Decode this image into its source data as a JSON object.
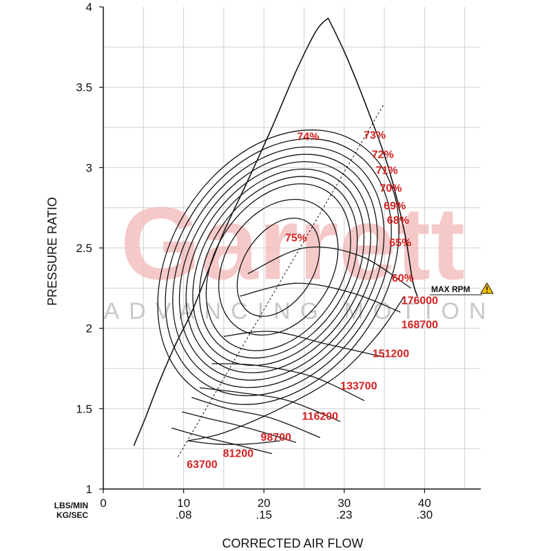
{
  "chart_data": {
    "type": "line",
    "title": "",
    "xlabel": "CORRECTED AIR FLOW",
    "ylabel": "PRESSURE RATIO",
    "x_unit_primary": "LBS/MIN",
    "x_unit_secondary": "KG/SEC",
    "xlim": [
      0,
      47
    ],
    "ylim": [
      1,
      4
    ],
    "x_ticks": [
      {
        "v": 0,
        "label": "0",
        "label2": ""
      },
      {
        "v": 10,
        "label": "10",
        "label2": ".08"
      },
      {
        "v": 20,
        "label": "20",
        "label2": ".15"
      },
      {
        "v": 30,
        "label": "30",
        "label2": ".23"
      },
      {
        "v": 40,
        "label": "40",
        "label2": ".30"
      }
    ],
    "y_ticks": [
      {
        "v": 1,
        "label": "1"
      },
      {
        "v": 1.5,
        "label": "1.5"
      },
      {
        "v": 2,
        "label": "2"
      },
      {
        "v": 2.5,
        "label": "2.5"
      },
      {
        "v": 3,
        "label": "3"
      },
      {
        "v": 3.5,
        "label": "3.5"
      },
      {
        "v": 4,
        "label": "4"
      }
    ],
    "grid": true,
    "surge_line": [
      [
        3.8,
        1.27
      ],
      [
        5.3,
        1.45
      ],
      [
        7,
        1.67
      ],
      [
        9,
        1.9
      ],
      [
        11,
        2.1
      ],
      [
        13,
        2.35
      ],
      [
        15,
        2.6
      ],
      [
        18,
        2.92
      ],
      [
        21,
        3.25
      ],
      [
        24,
        3.6
      ],
      [
        26.5,
        3.85
      ],
      [
        28,
        3.93
      ]
    ],
    "choke_line": [
      [
        28,
        3.93
      ],
      [
        30.2,
        3.7
      ],
      [
        33,
        3.35
      ],
      [
        35.5,
        3.0
      ],
      [
        37.5,
        2.6
      ],
      [
        38.5,
        2.3
      ],
      [
        39.1,
        2.2
      ]
    ],
    "top_arc": [
      [
        10.5,
        1.3
      ],
      [
        14,
        1.28
      ],
      [
        18,
        1.28
      ],
      [
        22,
        1.3
      ]
    ],
    "max_flow_line": [
      [
        10.5,
        1.3
      ],
      [
        15,
        1.35
      ],
      [
        22,
        1.5
      ],
      [
        29,
        1.7
      ],
      [
        34,
        1.95
      ],
      [
        37.5,
        2.2
      ]
    ],
    "dashed_line": [
      [
        9.3,
        1.2
      ],
      [
        35,
        3.4
      ]
    ],
    "speed_lines": [
      {
        "label": "63700",
        "points": [
          [
            8.5,
            1.38
          ],
          [
            12,
            1.33
          ],
          [
            17,
            1.27
          ],
          [
            21,
            1.22
          ]
        ],
        "label_at": [
          12.3,
          1.13
        ]
      },
      {
        "label": "81200",
        "points": [
          [
            9.8,
            1.48
          ],
          [
            13,
            1.44
          ],
          [
            18,
            1.38
          ],
          [
            24,
            1.29
          ]
        ],
        "label_at": [
          16.8,
          1.2
        ]
      },
      {
        "label": "98700",
        "points": [
          [
            11,
            1.57
          ],
          [
            15.5,
            1.5
          ],
          [
            21,
            1.44
          ],
          [
            27,
            1.32
          ]
        ],
        "label_at": [
          21.5,
          1.3
        ]
      },
      {
        "label": "116200",
        "points": [
          [
            12,
            1.63
          ],
          [
            17,
            1.6
          ],
          [
            23,
            1.55
          ],
          [
            29.5,
            1.42
          ]
        ],
        "label_at": [
          27,
          1.43
        ]
      },
      {
        "label": "133700",
        "points": [
          [
            13.5,
            1.78
          ],
          [
            19,
            1.77
          ],
          [
            26,
            1.7
          ],
          [
            32.5,
            1.55
          ]
        ],
        "label_at": [
          31.8,
          1.62
        ]
      },
      {
        "label": "151200",
        "points": [
          [
            15,
            1.95
          ],
          [
            21,
            1.98
          ],
          [
            28,
            1.9
          ],
          [
            35,
            1.82
          ]
        ],
        "label_at": [
          35.8,
          1.82
        ]
      },
      {
        "label": "168700",
        "points": [
          [
            17,
            2.2
          ],
          [
            24,
            2.28
          ],
          [
            31,
            2.22
          ],
          [
            37,
            2.1
          ]
        ],
        "label_at": [
          39.4,
          2.0
        ]
      },
      {
        "label": "176000",
        "points": [
          [
            18,
            2.34
          ],
          [
            25,
            2.5
          ],
          [
            32,
            2.45
          ],
          [
            38.3,
            2.25
          ]
        ],
        "label_at": [
          39.4,
          2.15
        ]
      }
    ],
    "efficiency_islands": [
      {
        "label": "75%",
        "rx": 6.2,
        "ry": 0.62,
        "label_at": [
          24,
          2.54
        ]
      },
      {
        "label": "74%",
        "rx": 8.4,
        "ry": 0.95,
        "label_at": [
          25.5,
          3.17
        ]
      },
      {
        "label": "73%",
        "rx": 10.4,
        "ry": 1.13,
        "label_at": [
          33.8,
          3.18
        ]
      },
      {
        "label": "72%",
        "rx": 11.3,
        "ry": 1.24,
        "label_at": [
          34.8,
          3.06
        ]
      },
      {
        "label": "71%",
        "rx": 12.2,
        "ry": 1.35,
        "label_at": [
          35.3,
          2.96
        ]
      },
      {
        "label": "70%",
        "rx": 13.1,
        "ry": 1.46,
        "label_at": [
          35.8,
          2.85
        ]
      },
      {
        "label": "69%",
        "rx": 14.0,
        "ry": 1.57,
        "label_at": [
          36.3,
          2.74
        ]
      },
      {
        "label": "68%",
        "rx": 14.9,
        "ry": 1.68,
        "label_at": [
          36.7,
          2.65
        ]
      },
      {
        "label": "65%",
        "rx": 15.9,
        "ry": 1.8,
        "label_at": [
          37.0,
          2.51
        ]
      },
      {
        "label": "60%",
        "rx": 17.0,
        "ry": 1.92,
        "label_at": [
          37.3,
          2.29
        ]
      }
    ],
    "annotations": {
      "max_rpm": "MAX RPM"
    },
    "watermark": {
      "brand": "Garrett",
      "tagline": "ADVANCING MOTION"
    }
  }
}
